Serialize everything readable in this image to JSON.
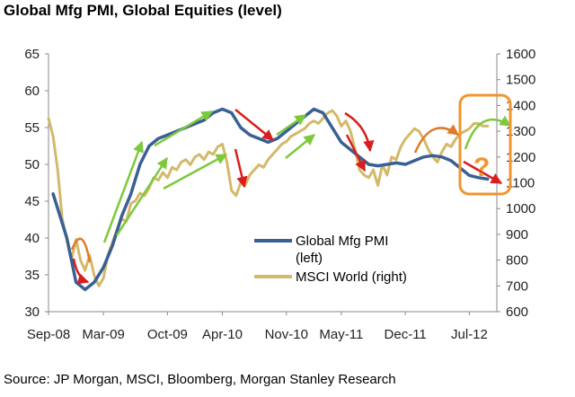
{
  "chart_data": {
    "type": "line",
    "title": "Global Mfg PMI, Global Equities (level)",
    "source": "Source: JP Morgan, MSCI, Bloomberg, Morgan Stanley Research",
    "x_ticks": [
      {
        "label": "Sep-08",
        "t": 0
      },
      {
        "label": "Mar-09",
        "t": 6
      },
      {
        "label": "Oct-09",
        "t": 13
      },
      {
        "label": "Apr-10",
        "t": 19
      },
      {
        "label": "Nov-10",
        "t": 26
      },
      {
        "label": "May-11",
        "t": 32
      },
      {
        "label": "Dec-11",
        "t": 39
      },
      {
        "label": "Jul-12",
        "t": 46
      }
    ],
    "x_range": [
      0,
      49
    ],
    "y_left": {
      "range": [
        30,
        65
      ],
      "ticks": [
        30,
        35,
        40,
        45,
        50,
        55,
        60,
        65
      ]
    },
    "y_right": {
      "range": [
        600,
        1600
      ],
      "ticks": [
        600,
        700,
        800,
        900,
        1000,
        1100,
        1200,
        1300,
        1400,
        1500,
        1600
      ]
    },
    "series": [
      {
        "name": "Global Mfg PMI (left)",
        "legend_lines": [
          "Global Mfg PMI",
          "(left)"
        ],
        "axis": "left",
        "color": "#3a5f93",
        "points": [
          [
            0.5,
            46
          ],
          [
            1,
            44
          ],
          [
            2,
            40
          ],
          [
            3,
            34
          ],
          [
            4,
            33
          ],
          [
            5,
            34
          ],
          [
            6,
            36
          ],
          [
            7,
            39
          ],
          [
            8,
            43
          ],
          [
            9,
            46
          ],
          [
            10,
            50
          ],
          [
            11,
            52.5
          ],
          [
            12,
            53.5
          ],
          [
            13,
            54
          ],
          [
            14,
            54.5
          ],
          [
            15,
            55
          ],
          [
            16,
            55.5
          ],
          [
            17,
            56
          ],
          [
            18,
            57
          ],
          [
            19,
            57.5
          ],
          [
            20,
            57
          ],
          [
            21,
            55
          ],
          [
            22,
            54
          ],
          [
            23,
            53.5
          ],
          [
            24,
            53
          ],
          [
            25,
            53.5
          ],
          [
            26,
            54.5
          ],
          [
            27,
            55.5
          ],
          [
            28,
            56.5
          ],
          [
            29,
            57.5
          ],
          [
            30,
            57
          ],
          [
            31,
            55
          ],
          [
            32,
            53
          ],
          [
            33,
            52
          ],
          [
            34,
            51
          ],
          [
            35,
            50
          ],
          [
            36,
            49.8
          ],
          [
            37,
            50
          ],
          [
            38,
            50.2
          ],
          [
            39,
            50
          ],
          [
            40,
            50.5
          ],
          [
            41,
            51
          ],
          [
            42,
            51.2
          ],
          [
            43,
            51
          ],
          [
            44,
            50.5
          ],
          [
            45,
            49.5
          ],
          [
            46,
            48.5
          ],
          [
            47,
            48.2
          ],
          [
            48,
            48
          ]
        ]
      },
      {
        "name": "MSCI World (right)",
        "axis": "right",
        "color": "#d4b96a",
        "points": [
          [
            0,
            1350
          ],
          [
            0.5,
            1280
          ],
          [
            1,
            1150
          ],
          [
            1.5,
            960
          ],
          [
            2,
            880
          ],
          [
            2.5,
            800
          ],
          [
            3,
            880
          ],
          [
            3.5,
            800
          ],
          [
            4,
            760
          ],
          [
            4.5,
            820
          ],
          [
            5,
            740
          ],
          [
            5.5,
            700
          ],
          [
            6,
            730
          ],
          [
            6.5,
            820
          ],
          [
            7,
            870
          ],
          [
            7.5,
            920
          ],
          [
            8,
            960
          ],
          [
            8.5,
            950
          ],
          [
            9,
            1020
          ],
          [
            9.5,
            1030
          ],
          [
            10,
            1060
          ],
          [
            10.5,
            1050
          ],
          [
            11,
            1080
          ],
          [
            11.5,
            1120
          ],
          [
            12,
            1110
          ],
          [
            12.5,
            1140
          ],
          [
            13,
            1120
          ],
          [
            13.5,
            1160
          ],
          [
            14,
            1150
          ],
          [
            14.5,
            1180
          ],
          [
            15,
            1190
          ],
          [
            15.5,
            1170
          ],
          [
            16,
            1200
          ],
          [
            16.5,
            1210
          ],
          [
            17,
            1190
          ],
          [
            17.5,
            1220
          ],
          [
            18,
            1210
          ],
          [
            18.5,
            1240
          ],
          [
            19,
            1250
          ],
          [
            19.5,
            1180
          ],
          [
            20,
            1070
          ],
          [
            20.5,
            1050
          ],
          [
            21,
            1100
          ],
          [
            21.5,
            1090
          ],
          [
            22,
            1130
          ],
          [
            22.5,
            1150
          ],
          [
            23,
            1170
          ],
          [
            23.5,
            1160
          ],
          [
            24,
            1190
          ],
          [
            24.5,
            1210
          ],
          [
            25,
            1230
          ],
          [
            25.5,
            1250
          ],
          [
            26,
            1260
          ],
          [
            26.5,
            1280
          ],
          [
            27,
            1290
          ],
          [
            27.5,
            1300
          ],
          [
            28,
            1310
          ],
          [
            28.5,
            1330
          ],
          [
            29,
            1340
          ],
          [
            29.5,
            1330
          ],
          [
            30,
            1350
          ],
          [
            30.5,
            1370
          ],
          [
            31,
            1380
          ],
          [
            31.5,
            1360
          ],
          [
            32,
            1320
          ],
          [
            32.5,
            1340
          ],
          [
            33,
            1300
          ],
          [
            33.5,
            1230
          ],
          [
            34,
            1150
          ],
          [
            34.5,
            1130
          ],
          [
            35,
            1120
          ],
          [
            35.5,
            1150
          ],
          [
            36,
            1090
          ],
          [
            36.5,
            1170
          ],
          [
            37,
            1130
          ],
          [
            37.5,
            1200
          ],
          [
            38,
            1190
          ],
          [
            38.5,
            1240
          ],
          [
            39,
            1270
          ],
          [
            39.5,
            1290
          ],
          [
            40,
            1310
          ],
          [
            40.5,
            1300
          ],
          [
            41,
            1270
          ],
          [
            41.5,
            1230
          ],
          [
            42,
            1200
          ],
          [
            42.5,
            1180
          ],
          [
            43,
            1220
          ],
          [
            43.5,
            1250
          ],
          [
            44,
            1240
          ],
          [
            44.5,
            1270
          ],
          [
            45,
            1290
          ],
          [
            45.5,
            1300
          ],
          [
            46,
            1310
          ],
          [
            46.5,
            1330
          ],
          [
            47,
            1330
          ],
          [
            47.5,
            1320
          ],
          [
            48,
            1320
          ]
        ]
      }
    ],
    "legend": [
      {
        "label_lines": [
          "Global Mfg PMI",
          "(left)"
        ],
        "color": "#3a5f93"
      },
      {
        "label_lines": [
          "MSCI World (right)"
        ],
        "color": "#d4b96a"
      }
    ],
    "annotations": {
      "question_mark": "?",
      "highlight_color": "#f0962d"
    }
  }
}
